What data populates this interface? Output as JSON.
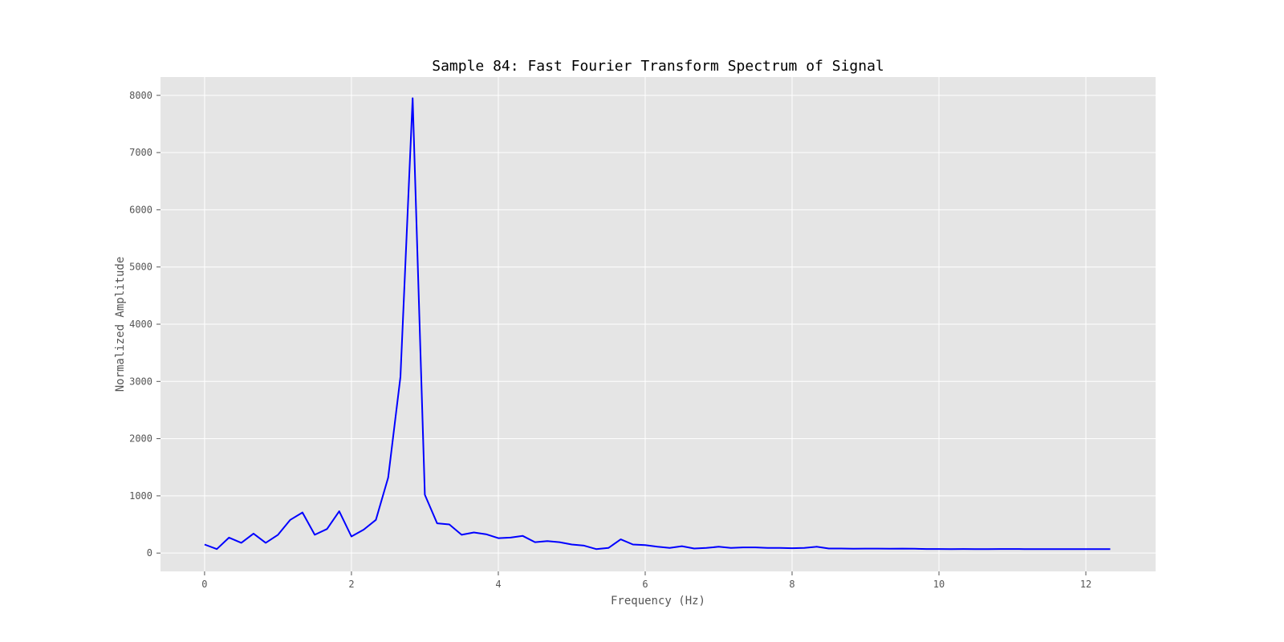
{
  "chart_data": {
    "type": "line",
    "title": "Sample 84: Fast Fourier Transform Spectrum of Signal",
    "xlabel": "Frequency (Hz)",
    "ylabel": "Normalized Amplitude",
    "xlim": [
      -0.6,
      12.95
    ],
    "ylim": [
      -320,
      8320
    ],
    "x_ticks": [
      0,
      2,
      4,
      6,
      8,
      10,
      12
    ],
    "y_ticks": [
      0,
      1000,
      2000,
      3000,
      4000,
      5000,
      6000,
      7000,
      8000
    ],
    "grid": true,
    "series": [
      {
        "color": "#0000ff",
        "x": [
          0,
          0.167,
          0.333,
          0.5,
          0.667,
          0.833,
          1.0,
          1.167,
          1.333,
          1.5,
          1.667,
          1.833,
          2.0,
          2.167,
          2.333,
          2.5,
          2.667,
          2.833,
          3.0,
          3.167,
          3.333,
          3.5,
          3.667,
          3.833,
          4.0,
          4.167,
          4.333,
          4.5,
          4.667,
          4.833,
          5.0,
          5.167,
          5.333,
          5.5,
          5.667,
          5.833,
          6.0,
          6.167,
          6.333,
          6.5,
          6.667,
          6.833,
          7.0,
          7.167,
          7.333,
          7.5,
          7.667,
          7.833,
          8.0,
          8.167,
          8.333,
          8.5,
          8.667,
          8.833,
          9.0,
          9.167,
          9.333,
          9.5,
          9.667,
          9.833,
          10.0,
          10.167,
          10.333,
          10.5,
          10.667,
          10.833,
          11.0,
          11.167,
          11.333,
          11.5,
          11.667,
          11.833,
          12.0,
          12.167,
          12.333
        ],
        "values": [
          150,
          70,
          270,
          180,
          340,
          180,
          320,
          580,
          710,
          320,
          420,
          730,
          290,
          410,
          580,
          1320,
          3080,
          7950,
          1020,
          520,
          500,
          320,
          360,
          330,
          260,
          270,
          300,
          190,
          210,
          190,
          150,
          130,
          70,
          90,
          240,
          150,
          140,
          110,
          90,
          120,
          80,
          90,
          110,
          90,
          100,
          100,
          90,
          90,
          85,
          90,
          110,
          80,
          80,
          75,
          78,
          78,
          75,
          78,
          75,
          72,
          72,
          70,
          72,
          70,
          70,
          72,
          72,
          70,
          68,
          70,
          68,
          68,
          68,
          68,
          68
        ]
      }
    ]
  }
}
